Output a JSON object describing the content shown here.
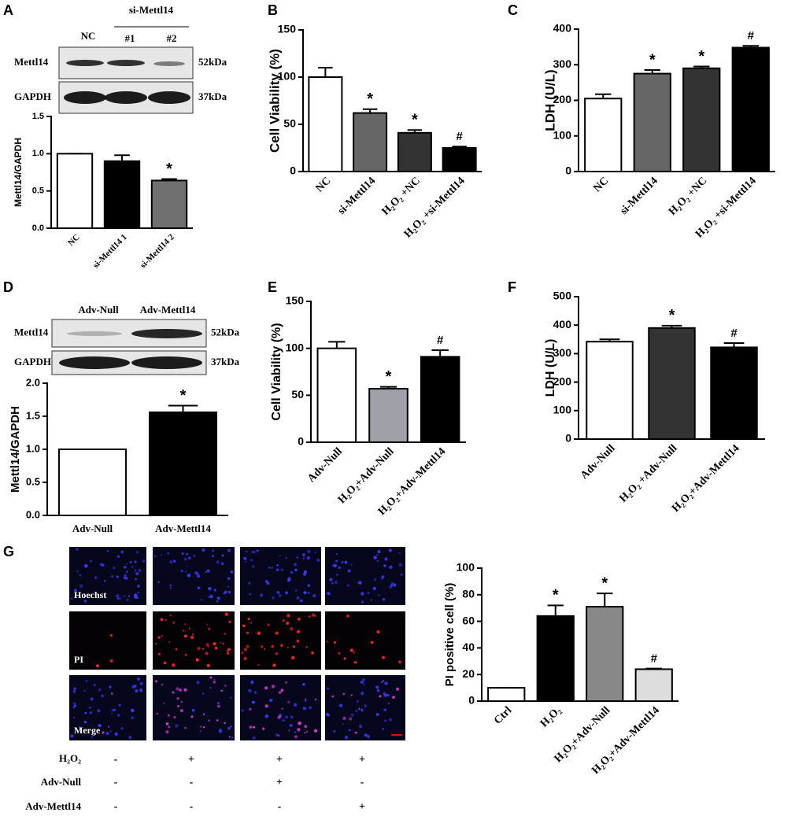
{
  "panels": [
    "A",
    "B",
    "C",
    "D",
    "E",
    "F",
    "G"
  ],
  "blots": [
    {
      "group_label": "si-Mettl14",
      "lanes": [
        "NC",
        "#1",
        "#2"
      ],
      "rows": [
        {
          "name": "Mettl14",
          "size": "52kDa"
        },
        {
          "name": "GAPDH",
          "size": "37kDa"
        }
      ]
    },
    {
      "lanes": [
        "Adv-Null",
        "Adv-Mettl14"
      ],
      "rows": [
        {
          "name": "Mettl14",
          "size": "52kDa"
        },
        {
          "name": "GAPDH",
          "size": "37kDa"
        }
      ]
    }
  ],
  "images": {
    "stains": [
      "Hoechst",
      "PI",
      "Merge"
    ]
  },
  "treatment_table": {
    "rows": [
      {
        "label": "H₂O₂",
        "cells": [
          "-",
          "+",
          "+",
          "+"
        ]
      },
      {
        "label": "Adv-Null",
        "cells": [
          "-",
          "-",
          "+",
          "-"
        ]
      },
      {
        "label": "Adv-Mettl14",
        "cells": [
          "-",
          "-",
          "-",
          "+"
        ]
      }
    ]
  },
  "chart_data": [
    {
      "type": "bar",
      "y_label": "Mettl14/GAPDH",
      "categories": [
        "NC",
        "si-Mettl14 1",
        "si-Mettl14 2"
      ],
      "values": [
        1.0,
        0.9,
        0.64
      ],
      "errors": [
        0,
        0.08,
        0.02
      ],
      "colors": [
        "#ffffff",
        "#000000",
        "#707070"
      ],
      "ylim": [
        0,
        1.5
      ],
      "yticks": [
        {
          "value": 0,
          "label": "0.0"
        },
        0.5,
        {
          "value": 1,
          "label": "1.0"
        },
        1.5
      ],
      "annotations": [
        {
          "index": 2,
          "text": "*"
        }
      ]
    },
    {
      "type": "bar",
      "y_label": "Cell Viability (%)",
      "categories": [
        "NC",
        "si-Mettl14",
        "H₂O₂ +NC",
        "H₂O₂ +si-Mettl14"
      ],
      "values": [
        100,
        62,
        41,
        25
      ],
      "errors": [
        10,
        4,
        3,
        1.5
      ],
      "colors": [
        "#ffffff",
        "#666666",
        "#333333",
        "#000000"
      ],
      "ylim": [
        0,
        150
      ],
      "yticks": [
        0,
        50,
        100,
        150
      ],
      "annotations": [
        {
          "index": 1,
          "text": "*"
        },
        {
          "index": 2,
          "text": "*"
        },
        {
          "index": 3,
          "text": "#"
        }
      ]
    },
    {
      "type": "bar",
      "y_label": "LDH (U/L)",
      "categories": [
        "NC",
        "si-Mettl14",
        "H₂O₂ +NC",
        "H₂O₂ +si-Mettl14"
      ],
      "values": [
        205,
        275,
        290,
        348
      ],
      "errors": [
        12,
        10,
        5,
        5
      ],
      "colors": [
        "#ffffff",
        "#666666",
        "#333333",
        "#000000"
      ],
      "ylim": [
        0,
        400
      ],
      "yticks": [
        0,
        100,
        200,
        300,
        400
      ],
      "annotations": [
        {
          "index": 1,
          "text": "*"
        },
        {
          "index": 2,
          "text": "*"
        },
        {
          "index": 3,
          "text": "#"
        }
      ]
    },
    {
      "type": "bar",
      "y_label": "Mettl14/GAPDH",
      "categories": [
        "Adv-Null",
        "Adv-Mettl14"
      ],
      "values": [
        1.0,
        1.56
      ],
      "errors": [
        0,
        0.1
      ],
      "colors": [
        "#ffffff",
        "#000000"
      ],
      "ylim": [
        0,
        2
      ],
      "yticks": [
        {
          "value": 0,
          "label": "0.0"
        },
        0.5,
        {
          "value": 1,
          "label": "1.0"
        },
        1.5,
        {
          "value": 2,
          "label": "2.0"
        }
      ],
      "annotations": [
        {
          "index": 1,
          "text": "*"
        }
      ]
    },
    {
      "type": "bar",
      "y_label": "Cell Viability (%)",
      "categories": [
        "Adv-Null",
        "H₂O₂+Adv-Null",
        "H₂O₂+Adv-Mettl14"
      ],
      "values": [
        100,
        57,
        91
      ],
      "errors": [
        7,
        2,
        7
      ],
      "colors": [
        "#ffffff",
        "#a0a0a8",
        "#000000"
      ],
      "ylim": [
        0,
        150
      ],
      "yticks": [
        0,
        50,
        100,
        150
      ],
      "annotations": [
        {
          "index": 1,
          "text": "*"
        },
        {
          "index": 2,
          "text": "#"
        }
      ]
    },
    {
      "type": "bar",
      "y_label": "LDH (U/L)",
      "categories": [
        "Adv-Null",
        "H₂O₂ +Adv-Null",
        "H₂O₂+Adv-Mettl14"
      ],
      "values": [
        342,
        390,
        322
      ],
      "errors": [
        8,
        8,
        15
      ],
      "colors": [
        "#ffffff",
        "#333333",
        "#000000"
      ],
      "ylim": [
        0,
        500
      ],
      "yticks": [
        0,
        100,
        200,
        300,
        400,
        500
      ],
      "annotations": [
        {
          "index": 1,
          "text": "*"
        },
        {
          "index": 2,
          "text": "#"
        }
      ]
    },
    {
      "type": "bar",
      "y_label": "PI positive cell (%)",
      "categories": [
        "Ctrl",
        "H₂O₂",
        "H₂O₂+Adv-Null",
        "H₂O₂+Adv-Mettl14"
      ],
      "values": [
        10,
        64,
        71,
        24
      ],
      "errors": [
        0,
        8,
        10,
        0.5
      ],
      "colors": [
        "#ffffff",
        "#000000",
        "#888888",
        "#dddddd"
      ],
      "ylim": [
        0,
        100
      ],
      "yticks": [
        0,
        20,
        40,
        60,
        80,
        100
      ],
      "annotations": [
        {
          "index": 1,
          "text": "*"
        },
        {
          "index": 2,
          "text": "*"
        },
        {
          "index": 3,
          "text": "#"
        }
      ]
    }
  ]
}
